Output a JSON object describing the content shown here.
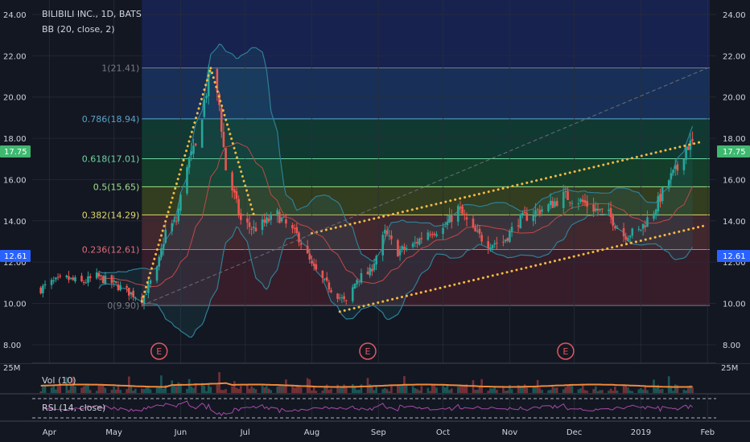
{
  "header": {
    "symbol_line": "BILIBILI INC., 1D, BATS",
    "indicator_line": "BB (20, close, 2)"
  },
  "volume_panel": {
    "label": "Vol (10)",
    "axis_label": "25M"
  },
  "rsi_panel": {
    "label": "RSI (14, close)"
  },
  "price_badges": {
    "current": "17.75",
    "reference": "12.61"
  },
  "earnings_markers": [
    {
      "label": "E",
      "date": "2018-05-22"
    },
    {
      "label": "E",
      "date": "2018-08-27"
    },
    {
      "label": "E",
      "date": "2018-11-27"
    }
  ],
  "fib_levels": [
    {
      "label": "1(21.41)",
      "value": 21.41,
      "color": "#787b86",
      "fill": "#2a2e39"
    },
    {
      "label": "0.786(18.94)",
      "value": 18.94,
      "color": "#5aa3c8",
      "fill": "#1a3560"
    },
    {
      "label": "0.618(17.01)",
      "value": 17.01,
      "color": "#6fd3a0",
      "fill": "#103f35"
    },
    {
      "label": "0.5(15.65)",
      "value": 15.65,
      "color": "#9fe08a",
      "fill": "#15452a"
    },
    {
      "label": "0.382(14.29)",
      "value": 14.29,
      "color": "#e0d86a",
      "fill": "#3a4420"
    },
    {
      "label": "0.236(12.61)",
      "value": 12.61,
      "color": "#e06d7a",
      "fill": "#4a2a30"
    },
    {
      "label": "0(9.90)",
      "value": 9.9,
      "color": "#787b86",
      "fill": "#3d1f2a"
    }
  ],
  "colors": {
    "background": "#131722",
    "up": "#26a69a",
    "down": "#ef5350",
    "bollinger": "#2f7f95",
    "basis": "#c04848",
    "trendline": "#f5b942",
    "volume_ma": "#f08a3c",
    "rsi": "#a84aa8",
    "price_badge": "#3fb870",
    "reference_badge": "#2962ff"
  },
  "chart_data": {
    "type": "candlestick",
    "x_axis": {
      "ticks": [
        "Apr",
        "May",
        "Jun",
        "Jul",
        "Aug",
        "Sep",
        "Oct",
        "Nov",
        "Dec",
        "2019",
        "Feb"
      ],
      "tick_dates": [
        "2018-04-01",
        "2018-05-01",
        "2018-06-01",
        "2018-07-01",
        "2018-08-01",
        "2018-09-01",
        "2018-10-01",
        "2018-11-01",
        "2018-12-01",
        "2019-01-01",
        "2019-02-01"
      ],
      "range": [
        "2018-03-24",
        "2019-02-05"
      ]
    },
    "y_axis": {
      "ticks": [
        "24.00",
        "22.00",
        "20.00",
        "18.00",
        "16.00",
        "14.00",
        "12.00",
        "10.00",
        "8.00"
      ],
      "range": [
        7.1,
        24.7
      ]
    },
    "grid": true,
    "legend": "top-left",
    "series": [
      {
        "points": [
          [
            "2018-03-28",
            10.7
          ],
          [
            "2018-04-02",
            11.0
          ],
          [
            "2018-04-09",
            11.2
          ],
          [
            "2018-04-16",
            11.0
          ],
          [
            "2018-04-23",
            11.3
          ],
          [
            "2018-04-30",
            11.0
          ],
          [
            "2018-05-07",
            10.6
          ],
          [
            "2018-05-14",
            10.2
          ],
          [
            "2018-05-21",
            11.6
          ],
          [
            "2018-05-25",
            13.5
          ],
          [
            "2018-05-30",
            14.0
          ],
          [
            "2018-06-04",
            16.8
          ],
          [
            "2018-06-08",
            17.5
          ],
          [
            "2018-06-12",
            19.8
          ],
          [
            "2018-06-15",
            21.3
          ],
          [
            "2018-06-19",
            19.6
          ],
          [
            "2018-06-22",
            16.5
          ],
          [
            "2018-06-26",
            15.2
          ],
          [
            "2018-06-29",
            14.0
          ],
          [
            "2018-07-05",
            13.6
          ],
          [
            "2018-07-10",
            13.9
          ],
          [
            "2018-07-16",
            14.3
          ],
          [
            "2018-07-20",
            13.8
          ],
          [
            "2018-07-26",
            13.2
          ],
          [
            "2018-08-01",
            11.8
          ],
          [
            "2018-08-07",
            11.0
          ],
          [
            "2018-08-13",
            10.4
          ],
          [
            "2018-08-17",
            10.0
          ],
          [
            "2018-08-22",
            11.2
          ],
          [
            "2018-08-28",
            11.5
          ],
          [
            "2018-09-04",
            13.4
          ],
          [
            "2018-09-10",
            12.5
          ],
          [
            "2018-09-17",
            12.8
          ],
          [
            "2018-09-24",
            13.5
          ],
          [
            "2018-10-01",
            13.6
          ],
          [
            "2018-10-08",
            14.6
          ],
          [
            "2018-10-15",
            13.5
          ],
          [
            "2018-10-22",
            12.9
          ],
          [
            "2018-10-29",
            13.0
          ],
          [
            "2018-11-05",
            14.0
          ],
          [
            "2018-11-12",
            14.4
          ],
          [
            "2018-11-19",
            14.7
          ],
          [
            "2018-11-26",
            15.2
          ],
          [
            "2018-12-03",
            15.0
          ],
          [
            "2018-12-10",
            14.6
          ],
          [
            "2018-12-17",
            14.3
          ],
          [
            "2018-12-24",
            13.3
          ],
          [
            "2018-12-31",
            13.5
          ],
          [
            "2019-01-07",
            14.5
          ],
          [
            "2019-01-14",
            16.0
          ],
          [
            "2019-01-18",
            16.5
          ],
          [
            "2019-01-22",
            17.6
          ],
          [
            "2019-01-25",
            17.75
          ]
        ]
      }
    ]
  }
}
